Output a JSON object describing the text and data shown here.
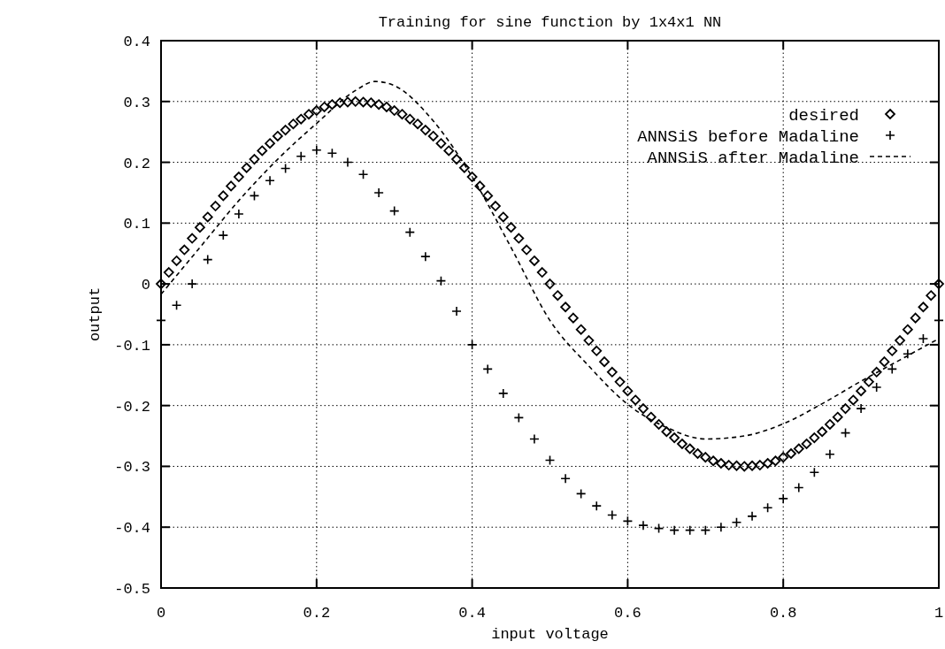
{
  "chart_data": {
    "type": "scatter",
    "title": "Training for sine function by 1x4x1 NN",
    "xlabel": "input voltage",
    "ylabel": "output",
    "xlim": [
      0,
      1
    ],
    "xticks": [
      0,
      0.2,
      0.4,
      0.6,
      0.8,
      1
    ],
    "ylim": [
      -0.5,
      0.4
    ],
    "yticks": [
      -0.5,
      -0.4,
      -0.3,
      -0.2,
      -0.1,
      0,
      0.1,
      0.2,
      0.3,
      0.4
    ],
    "grid": true,
    "legend": "top right",
    "series": [
      {
        "name": "desired",
        "marker": "diamond",
        "color": "#000000",
        "x": [
          0,
          0.01,
          0.02,
          0.03,
          0.04,
          0.05,
          0.06,
          0.07,
          0.08,
          0.09,
          0.1,
          0.11,
          0.12,
          0.13,
          0.14,
          0.15,
          0.16,
          0.17,
          0.18,
          0.19,
          0.2,
          0.21,
          0.22,
          0.23,
          0.24,
          0.25,
          0.26,
          0.27,
          0.28,
          0.29,
          0.3,
          0.31,
          0.32,
          0.33,
          0.34,
          0.35,
          0.36,
          0.37,
          0.38,
          0.39,
          0.4,
          0.41,
          0.42,
          0.43,
          0.44,
          0.45,
          0.46,
          0.47,
          0.48,
          0.49,
          0.5,
          0.51,
          0.52,
          0.53,
          0.54,
          0.55,
          0.56,
          0.57,
          0.58,
          0.59,
          0.6,
          0.61,
          0.62,
          0.63,
          0.64,
          0.65,
          0.66,
          0.67,
          0.68,
          0.69,
          0.7,
          0.71,
          0.72,
          0.73,
          0.74,
          0.75,
          0.76,
          0.77,
          0.78,
          0.79,
          0.8,
          0.81,
          0.82,
          0.83,
          0.84,
          0.85,
          0.86,
          0.87,
          0.88,
          0.89,
          0.9,
          0.91,
          0.92,
          0.93,
          0.94,
          0.95,
          0.96,
          0.97,
          0.98,
          0.99,
          1
        ],
        "values": [
          0,
          0.019,
          0.038,
          0.056,
          0.075,
          0.093,
          0.11,
          0.128,
          0.145,
          0.161,
          0.176,
          0.191,
          0.205,
          0.219,
          0.231,
          0.243,
          0.253,
          0.263,
          0.271,
          0.279,
          0.285,
          0.291,
          0.295,
          0.298,
          0.299,
          0.3,
          0.299,
          0.298,
          0.295,
          0.291,
          0.285,
          0.279,
          0.271,
          0.263,
          0.253,
          0.243,
          0.231,
          0.219,
          0.205,
          0.191,
          0.176,
          0.161,
          0.145,
          0.128,
          0.11,
          0.093,
          0.075,
          0.056,
          0.038,
          0.019,
          0,
          -0.019,
          -0.038,
          -0.056,
          -0.075,
          -0.093,
          -0.11,
          -0.128,
          -0.145,
          -0.161,
          -0.176,
          -0.191,
          -0.205,
          -0.219,
          -0.231,
          -0.243,
          -0.253,
          -0.263,
          -0.271,
          -0.279,
          -0.285,
          -0.291,
          -0.295,
          -0.298,
          -0.299,
          -0.3,
          -0.299,
          -0.298,
          -0.295,
          -0.291,
          -0.285,
          -0.279,
          -0.271,
          -0.263,
          -0.253,
          -0.243,
          -0.231,
          -0.219,
          -0.205,
          -0.191,
          -0.176,
          -0.161,
          -0.145,
          -0.128,
          -0.11,
          -0.093,
          -0.075,
          -0.056,
          -0.038,
          -0.019,
          0
        ]
      },
      {
        "name": "ANNSiS before Madaline",
        "marker": "cross",
        "color": "#000000",
        "x": [
          0,
          0.02,
          0.04,
          0.06,
          0.08,
          0.1,
          0.12,
          0.14,
          0.16,
          0.18,
          0.2,
          0.22,
          0.24,
          0.26,
          0.28,
          0.3,
          0.32,
          0.34,
          0.36,
          0.38,
          0.4,
          0.42,
          0.44,
          0.46,
          0.48,
          0.5,
          0.52,
          0.54,
          0.56,
          0.58,
          0.6,
          0.62,
          0.64,
          0.66,
          0.68,
          0.7,
          0.72,
          0.74,
          0.76,
          0.78,
          0.8,
          0.82,
          0.84,
          0.86,
          0.88,
          0.9,
          0.92,
          0.94,
          0.96,
          0.98,
          1
        ],
        "values": [
          -0.06,
          -0.035,
          0,
          0.04,
          0.08,
          0.115,
          0.145,
          0.17,
          0.19,
          0.21,
          0.22,
          0.215,
          0.2,
          0.18,
          0.15,
          0.12,
          0.085,
          0.045,
          0.005,
          -0.045,
          -0.1,
          -0.14,
          -0.18,
          -0.22,
          -0.255,
          -0.29,
          -0.32,
          -0.345,
          -0.365,
          -0.38,
          -0.39,
          -0.397,
          -0.402,
          -0.405,
          -0.405,
          -0.405,
          -0.4,
          -0.392,
          -0.382,
          -0.368,
          -0.353,
          -0.335,
          -0.31,
          -0.28,
          -0.245,
          -0.205,
          -0.17,
          -0.14,
          -0.115,
          -0.09,
          -0.06
        ]
      },
      {
        "name": "ANNSiS after Madaline",
        "type": "line",
        "line_style": "dashed",
        "color": "#000000",
        "x": [
          0,
          0.05,
          0.1,
          0.15,
          0.2,
          0.25,
          0.275,
          0.3,
          0.35,
          0.4,
          0.45,
          0.5,
          0.55,
          0.6,
          0.65,
          0.7,
          0.75,
          0.8,
          0.85,
          0.9,
          0.95,
          1
        ],
        "values": [
          -0.017,
          0.06,
          0.137,
          0.205,
          0.264,
          0.318,
          0.333,
          0.326,
          0.268,
          0.176,
          0.06,
          -0.06,
          -0.135,
          -0.198,
          -0.236,
          -0.255,
          -0.25,
          -0.23,
          -0.197,
          -0.16,
          -0.125,
          -0.09
        ]
      }
    ]
  }
}
